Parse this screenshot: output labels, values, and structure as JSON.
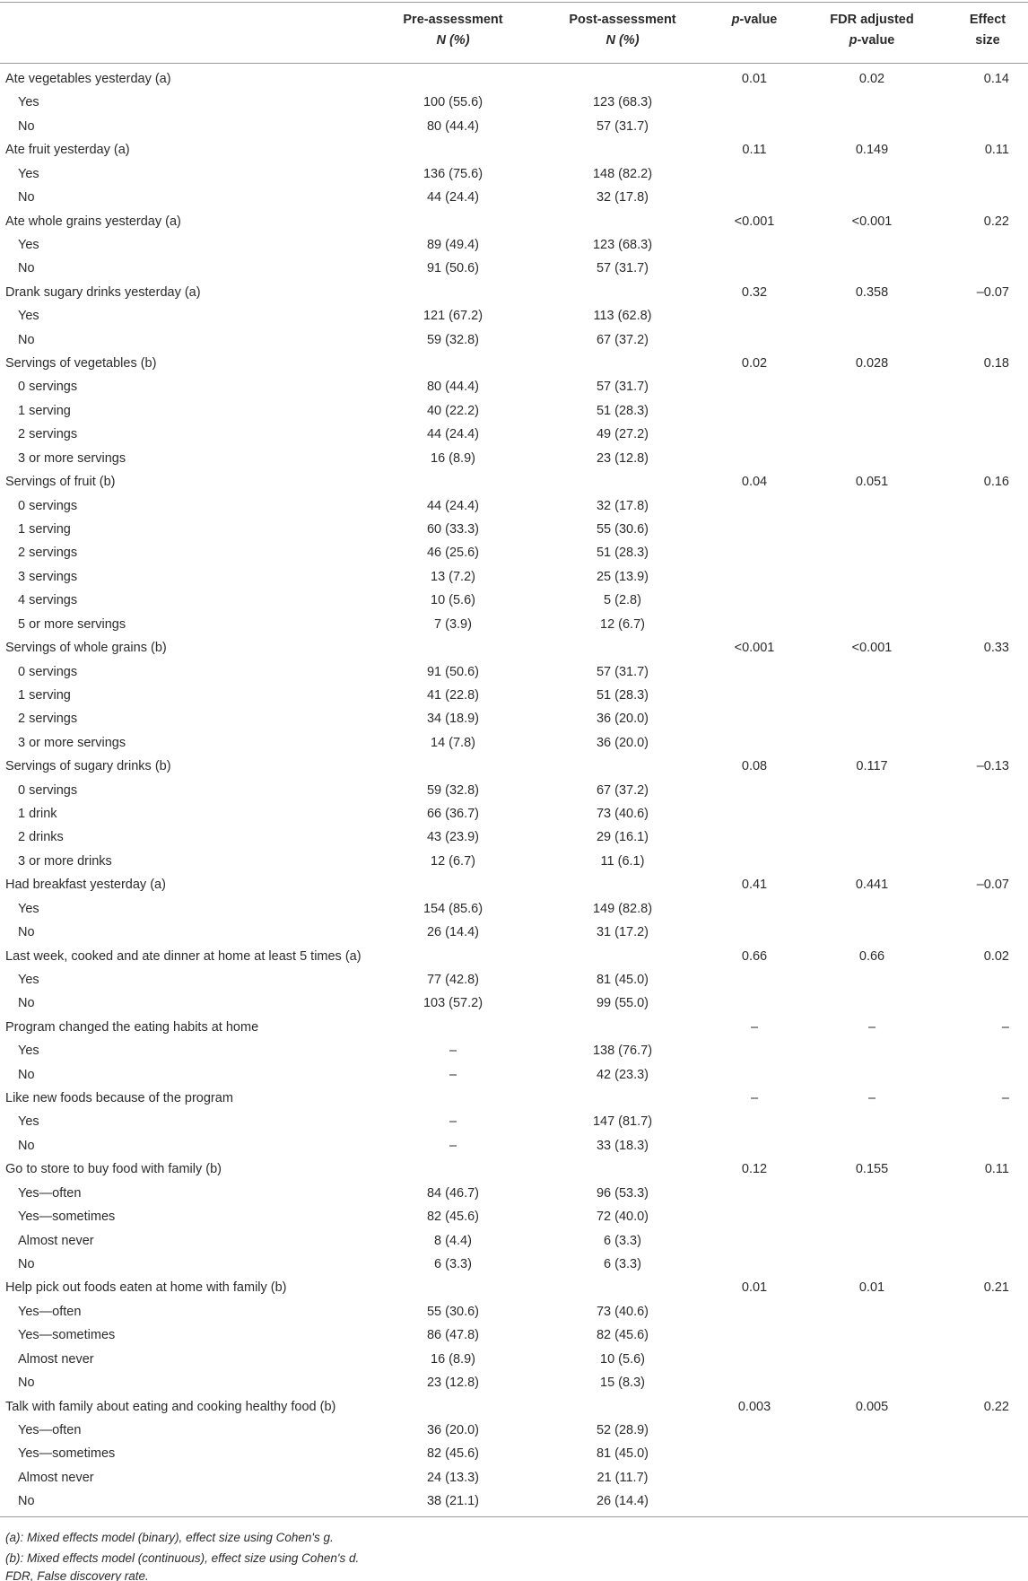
{
  "table": {
    "header": {
      "pre": [
        "Pre-assessment",
        "N (%)"
      ],
      "post": [
        "Post-assessment",
        "N (%)"
      ],
      "p": [
        "p",
        "-value"
      ],
      "fdr": [
        "FDR adjusted",
        "p",
        "-value"
      ],
      "effect": [
        "Effect",
        "size"
      ]
    },
    "groups": [
      {
        "label": "Ate vegetables yesterday (a)",
        "p": "0.01",
        "fdr": "0.02",
        "effect": "0.14",
        "rows": [
          [
            "Yes",
            "100 (55.6)",
            "123 (68.3)"
          ],
          [
            "No",
            "80 (44.4)",
            "57 (31.7)"
          ]
        ]
      },
      {
        "label": "Ate fruit yesterday (a)",
        "p": "0.11",
        "fdr": "0.149",
        "effect": "0.11",
        "rows": [
          [
            "Yes",
            "136 (75.6)",
            "148 (82.2)"
          ],
          [
            "No",
            "44 (24.4)",
            "32 (17.8)"
          ]
        ]
      },
      {
        "label": "Ate whole grains yesterday (a)",
        "p": "<0.001",
        "fdr": "<0.001",
        "effect": "0.22",
        "rows": [
          [
            "Yes",
            "89 (49.4)",
            "123 (68.3)"
          ],
          [
            "No",
            "91 (50.6)",
            "57 (31.7)"
          ]
        ]
      },
      {
        "label": "Drank sugary drinks yesterday (a)",
        "p": "0.32",
        "fdr": "0.358",
        "effect": "–0.07",
        "rows": [
          [
            "Yes",
            "121 (67.2)",
            "113 (62.8)"
          ],
          [
            "No",
            "59 (32.8)",
            "67 (37.2)"
          ]
        ]
      },
      {
        "label": "Servings of vegetables (b)",
        "p": "0.02",
        "fdr": "0.028",
        "effect": "0.18",
        "rows": [
          [
            "0 servings",
            "80 (44.4)",
            "57 (31.7)"
          ],
          [
            "1 serving",
            "40 (22.2)",
            "51 (28.3)"
          ],
          [
            "2 servings",
            "44 (24.4)",
            "49 (27.2)"
          ],
          [
            "3 or more servings",
            "16 (8.9)",
            "23 (12.8)"
          ]
        ]
      },
      {
        "label": "Servings of fruit (b)",
        "p": "0.04",
        "fdr": "0.051",
        "effect": "0.16",
        "rows": [
          [
            "0 servings",
            "44 (24.4)",
            "32 (17.8)"
          ],
          [
            "1 serving",
            "60 (33.3)",
            "55 (30.6)"
          ],
          [
            "2 servings",
            "46 (25.6)",
            "51 (28.3)"
          ],
          [
            "3 servings",
            "13 (7.2)",
            "25 (13.9)"
          ],
          [
            "4 servings",
            "10 (5.6)",
            "5 (2.8)"
          ],
          [
            "5 or more servings",
            "7 (3.9)",
            "12 (6.7)"
          ]
        ]
      },
      {
        "label": "Servings of whole grains (b)",
        "p": "<0.001",
        "fdr": "<0.001",
        "effect": "0.33",
        "rows": [
          [
            "0 servings",
            "91 (50.6)",
            "57 (31.7)"
          ],
          [
            "1 serving",
            "41 (22.8)",
            "51 (28.3)"
          ],
          [
            "2 servings",
            "34 (18.9)",
            "36 (20.0)"
          ],
          [
            "3 or more servings",
            "14 (7.8)",
            "36 (20.0)"
          ]
        ]
      },
      {
        "label": "Servings of sugary drinks (b)",
        "p": "0.08",
        "fdr": "0.117",
        "effect": "–0.13",
        "rows": [
          [
            "0 servings",
            "59 (32.8)",
            "67 (37.2)"
          ],
          [
            "1 drink",
            "66 (36.7)",
            "73 (40.6)"
          ],
          [
            "2 drinks",
            "43 (23.9)",
            "29 (16.1)"
          ],
          [
            "3 or more drinks",
            "12 (6.7)",
            "11 (6.1)"
          ]
        ]
      },
      {
        "label": "Had breakfast yesterday (a)",
        "p": "0.41",
        "fdr": "0.441",
        "effect": "–0.07",
        "rows": [
          [
            "Yes",
            "154 (85.6)",
            "149 (82.8)"
          ],
          [
            "No",
            "26 (14.4)",
            "31 (17.2)"
          ]
        ]
      },
      {
        "label": "Last week, cooked and ate dinner at home at least 5 times (a)",
        "p": "0.66",
        "fdr": "0.66",
        "effect": "0.02",
        "rows": [
          [
            "Yes",
            "77 (42.8)",
            "81 (45.0)"
          ],
          [
            "No",
            "103 (57.2)",
            "99 (55.0)"
          ]
        ]
      },
      {
        "label": "Program changed the eating habits at home",
        "p": "–",
        "fdr": "–",
        "effect": "–",
        "rows": [
          [
            "Yes",
            "–",
            "138 (76.7)"
          ],
          [
            "No",
            "–",
            "42 (23.3)"
          ]
        ]
      },
      {
        "label": "Like new foods because of the program",
        "p": "–",
        "fdr": "–",
        "effect": "–",
        "rows": [
          [
            "Yes",
            "–",
            "147 (81.7)"
          ],
          [
            "No",
            "–",
            "33 (18.3)"
          ]
        ]
      },
      {
        "label": "Go to store to buy food with family (b)",
        "p": "0.12",
        "fdr": "0.155",
        "effect": "0.11",
        "rows": [
          [
            "Yes—often",
            "84 (46.7)",
            "96 (53.3)"
          ],
          [
            "Yes—sometimes",
            "82 (45.6)",
            "72 (40.0)"
          ],
          [
            "Almost never",
            "8 (4.4)",
            "6 (3.3)"
          ],
          [
            "No",
            "6 (3.3)",
            "6 (3.3)"
          ]
        ]
      },
      {
        "label": "Help pick out foods eaten at home with family (b)",
        "p": "0.01",
        "fdr": "0.01",
        "effect": "0.21",
        "rows": [
          [
            "Yes—often",
            "55 (30.6)",
            "73 (40.6)"
          ],
          [
            "Yes—sometimes",
            "86 (47.8)",
            "82 (45.6)"
          ],
          [
            "Almost never",
            "16 (8.9)",
            "10 (5.6)"
          ],
          [
            "No",
            "23 (12.8)",
            "15 (8.3)"
          ]
        ]
      },
      {
        "label": "Talk with family about eating and cooking healthy food (b)",
        "p": "0.003",
        "fdr": "0.005",
        "effect": "0.22",
        "rows": [
          [
            "Yes—often",
            "36 (20.0)",
            "52 (28.9)"
          ],
          [
            "Yes—sometimes",
            "82 (45.6)",
            "81 (45.0)"
          ],
          [
            "Almost never",
            "24 (13.3)",
            "21 (11.7)"
          ],
          [
            "No",
            "38 (21.1)",
            "26 (14.4)"
          ]
        ]
      }
    ]
  },
  "footnotes": [
    "(a): Mixed effects model (binary), effect size using Cohen's g.",
    "(b): Mixed effects model (continuous), effect size using Cohen's d.",
    "FDR, False discovery rate."
  ]
}
